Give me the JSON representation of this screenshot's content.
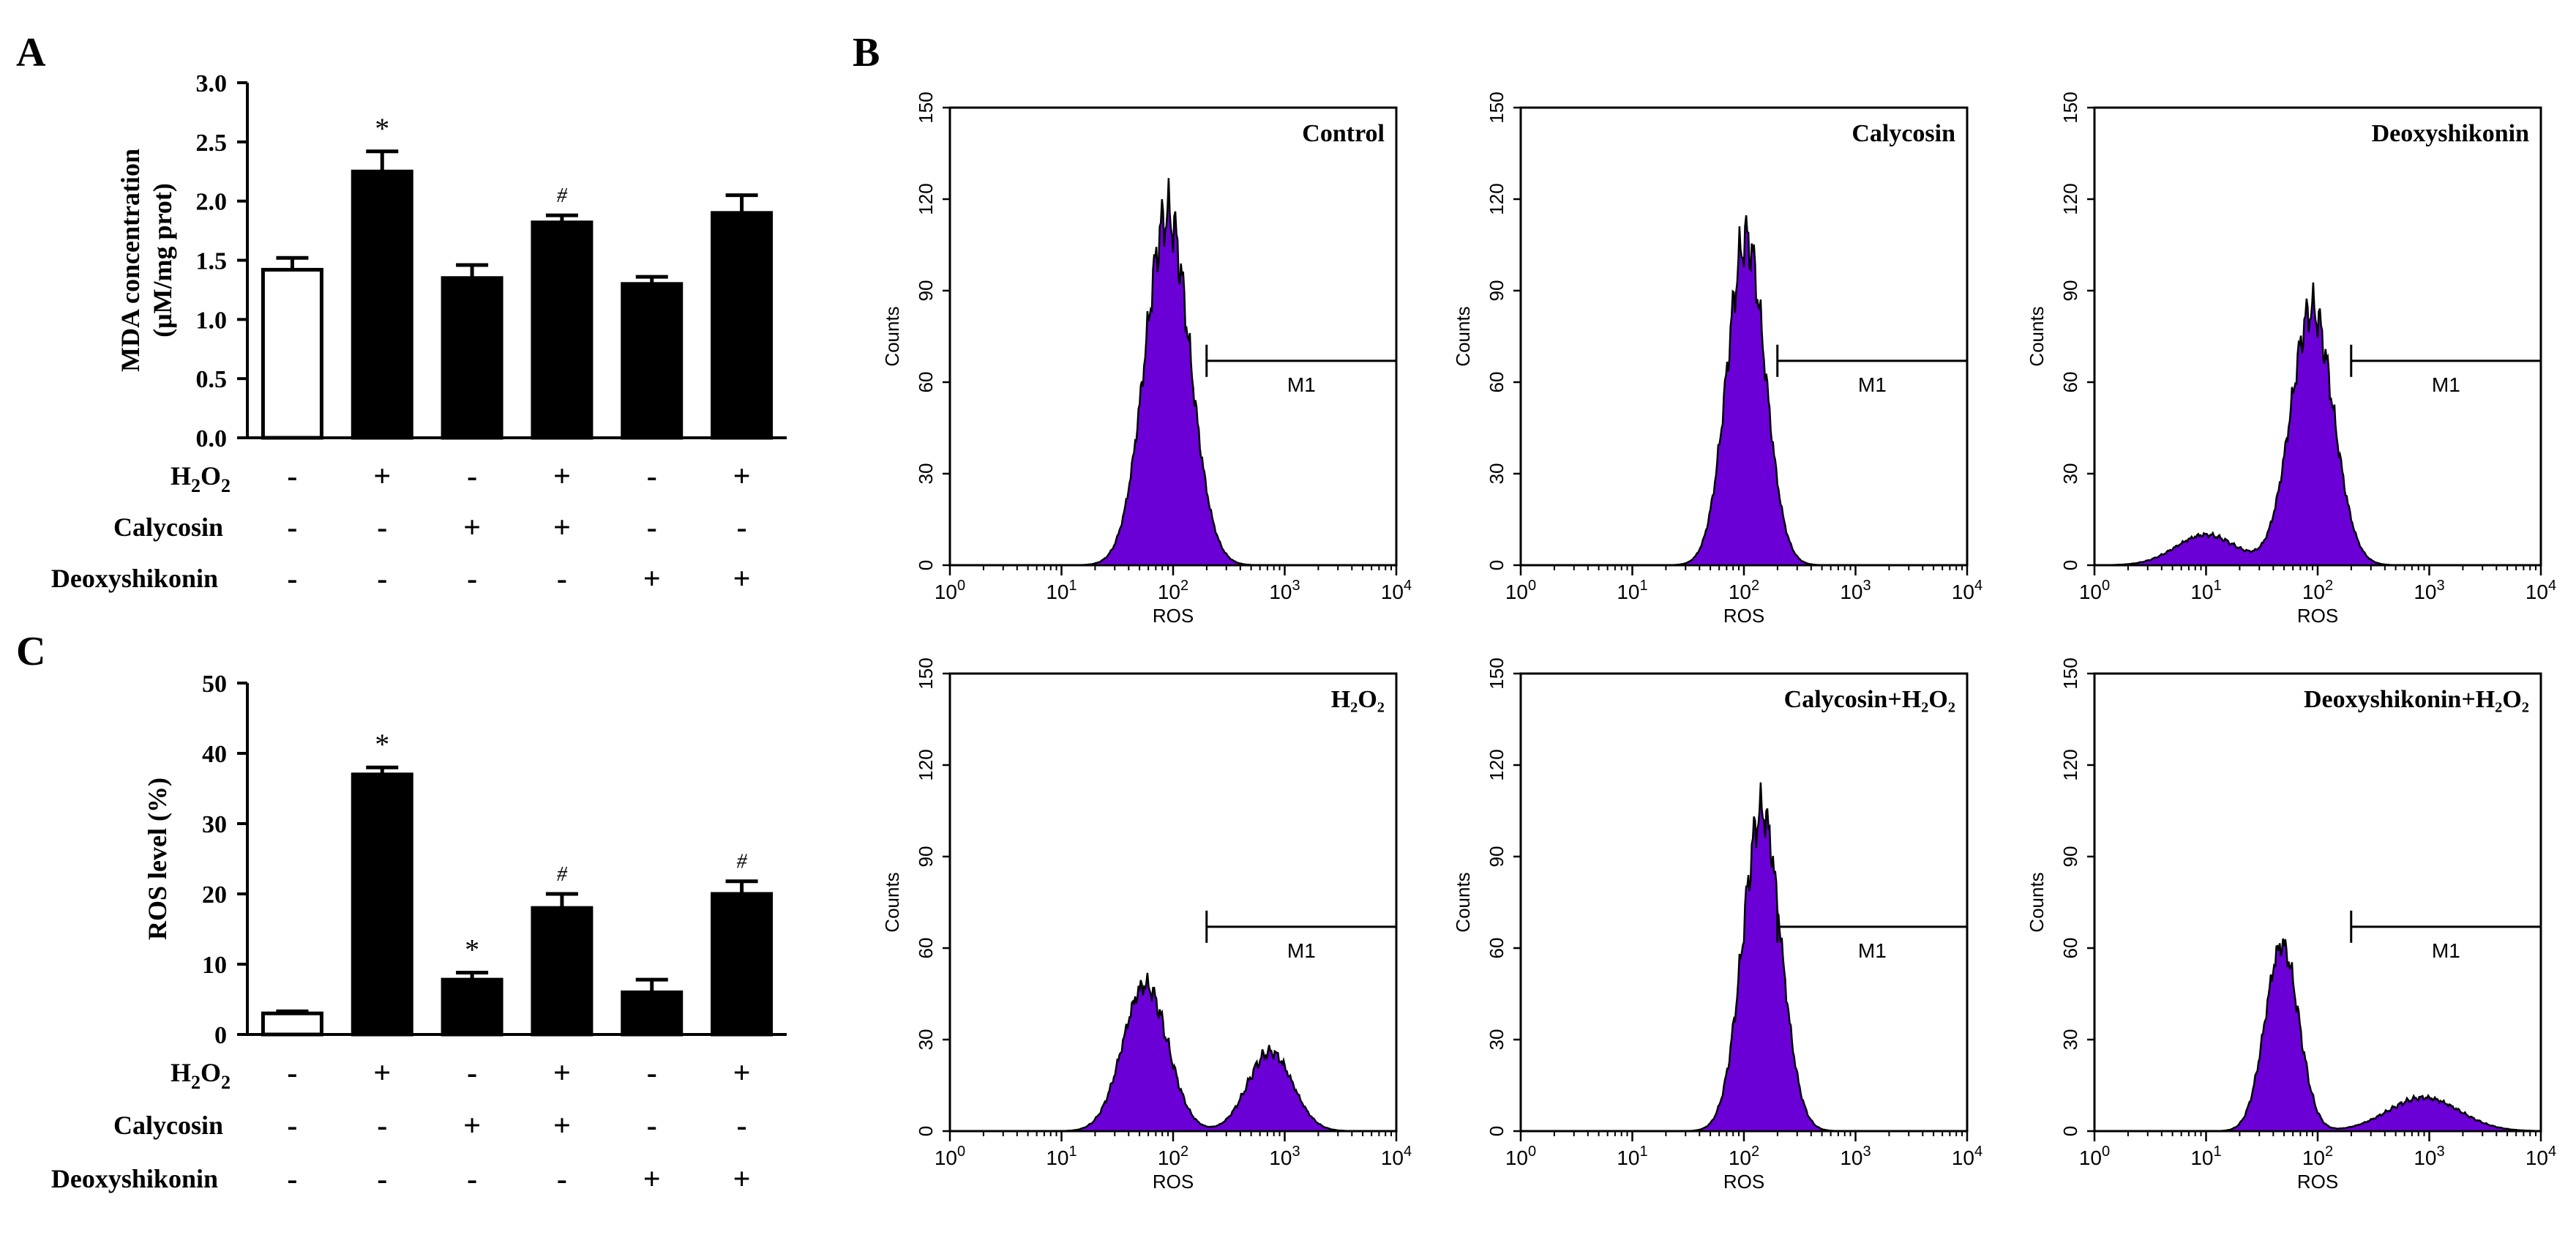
{
  "panel_labels": {
    "a": "A",
    "b": "B",
    "c": "C"
  },
  "treatment_labels": {
    "h2o2": "H",
    "two": "2",
    "o": "O",
    "calycosin": "Calycosin",
    "deoxyshikonin": "Deoxyshikonin"
  },
  "colors": {
    "purple": "#6a00d6",
    "black": "#000000",
    "white": "#ffffff"
  },
  "chart_data": [
    {
      "id": "A",
      "type": "bar",
      "ylabel_line1": "MDA concentration",
      "ylabel_line2": "(μM/mg prot)",
      "ylim": [
        0,
        3.0
      ],
      "yticks": [
        "0.0",
        "0.5",
        "1.0",
        "1.5",
        "2.0",
        "2.5",
        "3.0"
      ],
      "values": [
        1.42,
        2.25,
        1.35,
        1.82,
        1.3,
        1.9
      ],
      "errors": [
        0.1,
        0.17,
        0.11,
        0.06,
        0.06,
        0.15
      ],
      "fills": [
        "white",
        "black",
        "black",
        "black",
        "black",
        "black"
      ],
      "annotations": [
        "",
        "*",
        "",
        "#",
        "",
        ""
      ],
      "signs": {
        "h2o2": [
          "-",
          "+",
          "-",
          "+",
          "-",
          "+"
        ],
        "calycosin": [
          "-",
          "-",
          "+",
          "+",
          "-",
          "-"
        ],
        "deoxyshikonin": [
          "-",
          "-",
          "-",
          "-",
          "+",
          "+"
        ]
      }
    },
    {
      "id": "C",
      "type": "bar",
      "ylabel": "ROS level (%)",
      "ylim": [
        0,
        50
      ],
      "yticks": [
        "0",
        "10",
        "20",
        "30",
        "40",
        "50"
      ],
      "values": [
        3.0,
        37.0,
        7.8,
        18.0,
        6.0,
        20.0
      ],
      "errors": [
        0.3,
        1.0,
        1.0,
        2.0,
        1.8,
        1.8
      ],
      "fills": [
        "white",
        "black",
        "black",
        "black",
        "black",
        "black"
      ],
      "annotations": [
        "",
        "*",
        "*",
        "#",
        "",
        "#"
      ],
      "signs": {
        "h2o2": [
          "-",
          "+",
          "-",
          "+",
          "-",
          "+"
        ],
        "calycosin": [
          "-",
          "-",
          "+",
          "+",
          "-",
          "-"
        ],
        "deoxyshikonin": [
          "-",
          "-",
          "-",
          "-",
          "+",
          "+"
        ]
      }
    },
    {
      "id": "B",
      "type": "area",
      "xlabel": "ROS",
      "ylabel": "Counts",
      "xlim_log10": [
        0,
        4
      ],
      "ylim": [
        0,
        150
      ],
      "yticks": [
        "0",
        "30",
        "60",
        "90",
        "120",
        "150"
      ],
      "xtick_base": "10",
      "xtick_exponents": [
        "0",
        "1",
        "2",
        "3",
        "4"
      ],
      "gate_label": "M1",
      "gate_start_log10": 2.3,
      "histograms": [
        {
          "title": "Control",
          "peaks": [
            [
              1.95,
              115,
              0.2
            ]
          ]
        },
        {
          "title": "Calycosin",
          "peaks": [
            [
              2.02,
              107,
              0.17
            ]
          ]
        },
        {
          "title": "Deoxyshikonin",
          "peaks": [
            [
              1.95,
              84,
              0.19
            ],
            [
              1.0,
              10,
              0.27
            ]
          ]
        },
        {
          "title": "H₂O₂",
          "peaks": [
            [
              1.75,
              48,
              0.2
            ],
            [
              2.87,
              26,
              0.2
            ]
          ]
        },
        {
          "title": "Calycosin+H₂O₂",
          "peaks": [
            [
              2.16,
              105,
              0.17
            ]
          ]
        },
        {
          "title": "Deoxyshikonin+H₂O₂",
          "peaks": [
            [
              1.68,
              61,
              0.15
            ],
            [
              2.95,
              11,
              0.32
            ]
          ]
        }
      ]
    }
  ]
}
